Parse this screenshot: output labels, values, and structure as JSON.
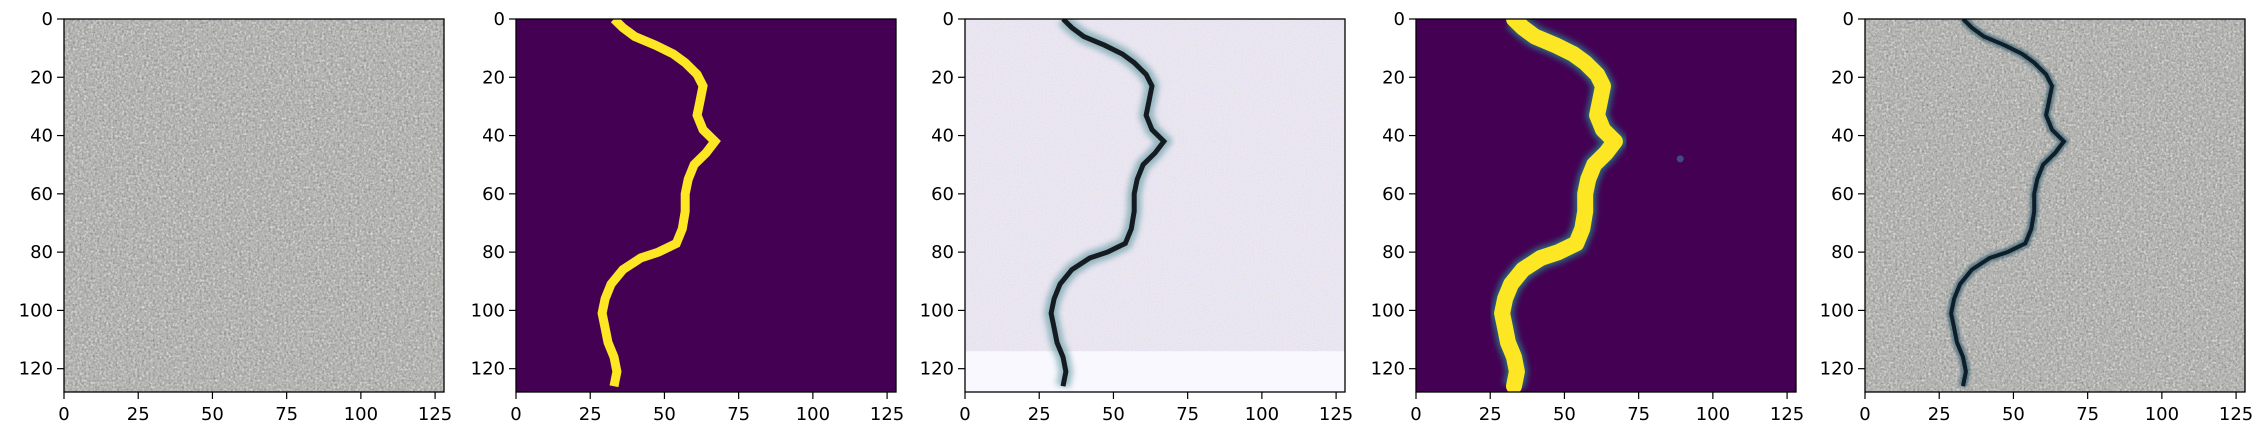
{
  "figure": {
    "panel_count": 5,
    "panels": [
      {
        "name": "concrete-surface-photo",
        "kind": "grayscale-texture",
        "xticks": [
          "0",
          "25",
          "50",
          "75",
          "100",
          "125"
        ],
        "yticks": [
          "0",
          "20",
          "40",
          "60",
          "80",
          "100",
          "120"
        ]
      },
      {
        "name": "ground-truth-crack-mask",
        "kind": "binary-mask",
        "colors": {
          "background": "#440154",
          "foreground": "#fde725"
        },
        "xticks": [
          "0",
          "25",
          "50",
          "75",
          "100",
          "125"
        ],
        "yticks": [
          "0",
          "20",
          "40",
          "60",
          "80",
          "100",
          "120"
        ]
      },
      {
        "name": "generated-crack-image",
        "kind": "synthetic-texture-with-crack",
        "xticks": [
          "0",
          "25",
          "50",
          "75",
          "100",
          "125"
        ],
        "yticks": [
          "0",
          "20",
          "40",
          "60",
          "80",
          "100",
          "120"
        ]
      },
      {
        "name": "predicted-crack-mask",
        "kind": "soft-mask",
        "colors": {
          "background": "#440154",
          "foreground": "#fde725",
          "edge": "#21918c"
        },
        "xticks": [
          "0",
          "25",
          "50",
          "75",
          "100",
          "125"
        ],
        "yticks": [
          "0",
          "20",
          "40",
          "60",
          "80",
          "100",
          "120"
        ]
      },
      {
        "name": "crack-overlay-photo",
        "kind": "grayscale-texture-with-crack",
        "xticks": [
          "0",
          "25",
          "50",
          "75",
          "100",
          "125"
        ],
        "yticks": [
          "0",
          "20",
          "40",
          "60",
          "80",
          "100",
          "120"
        ]
      }
    ],
    "axis_range": {
      "x": [
        0,
        128
      ],
      "y": [
        0,
        128
      ]
    }
  }
}
